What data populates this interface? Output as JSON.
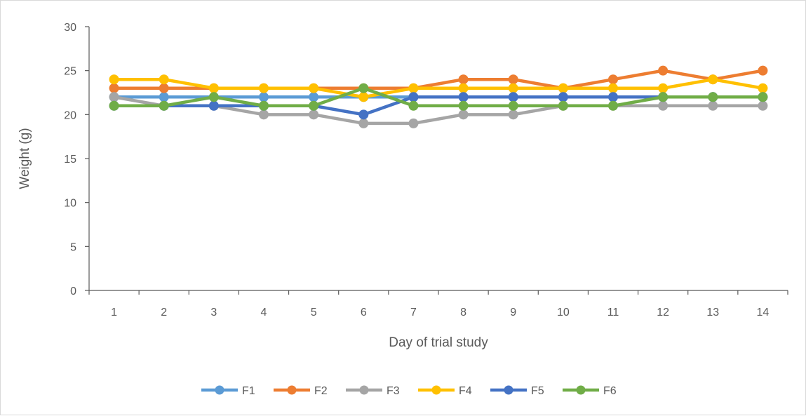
{
  "chart_data": {
    "type": "line",
    "title": "",
    "xlabel": "Day of trial study",
    "ylabel": "Weight (g)",
    "x": [
      1,
      2,
      3,
      4,
      5,
      6,
      7,
      8,
      9,
      10,
      11,
      12,
      13,
      14
    ],
    "ylim": [
      0,
      30
    ],
    "yticks": [
      0,
      5,
      10,
      15,
      20,
      25,
      30
    ],
    "grid": false,
    "legend": "bottom",
    "series": [
      {
        "name": "F1",
        "color": "#5B9BD5",
        "values": [
          22,
          22,
          22,
          22,
          22,
          22,
          22,
          22,
          22,
          22,
          22,
          22,
          22,
          22
        ]
      },
      {
        "name": "F2",
        "color": "#ED7D31",
        "values": [
          23,
          23,
          23,
          23,
          23,
          23,
          23,
          24,
          24,
          23,
          24,
          25,
          24,
          25
        ]
      },
      {
        "name": "F3",
        "color": "#A5A5A5",
        "values": [
          22,
          21,
          21,
          20,
          20,
          19,
          19,
          20,
          20,
          21,
          21,
          21,
          21,
          21
        ]
      },
      {
        "name": "F4",
        "color": "#FFC000",
        "values": [
          24,
          24,
          23,
          23,
          23,
          22,
          23,
          23,
          23,
          23,
          23,
          23,
          24,
          23
        ]
      },
      {
        "name": "F5",
        "color": "#4472C4",
        "values": [
          21,
          21,
          21,
          21,
          21,
          20,
          22,
          22,
          22,
          22,
          22,
          22,
          22,
          22
        ]
      },
      {
        "name": "F6",
        "color": "#70AD47",
        "values": [
          21,
          21,
          22,
          21,
          21,
          23,
          21,
          21,
          21,
          21,
          21,
          22,
          22,
          22
        ]
      }
    ]
  }
}
